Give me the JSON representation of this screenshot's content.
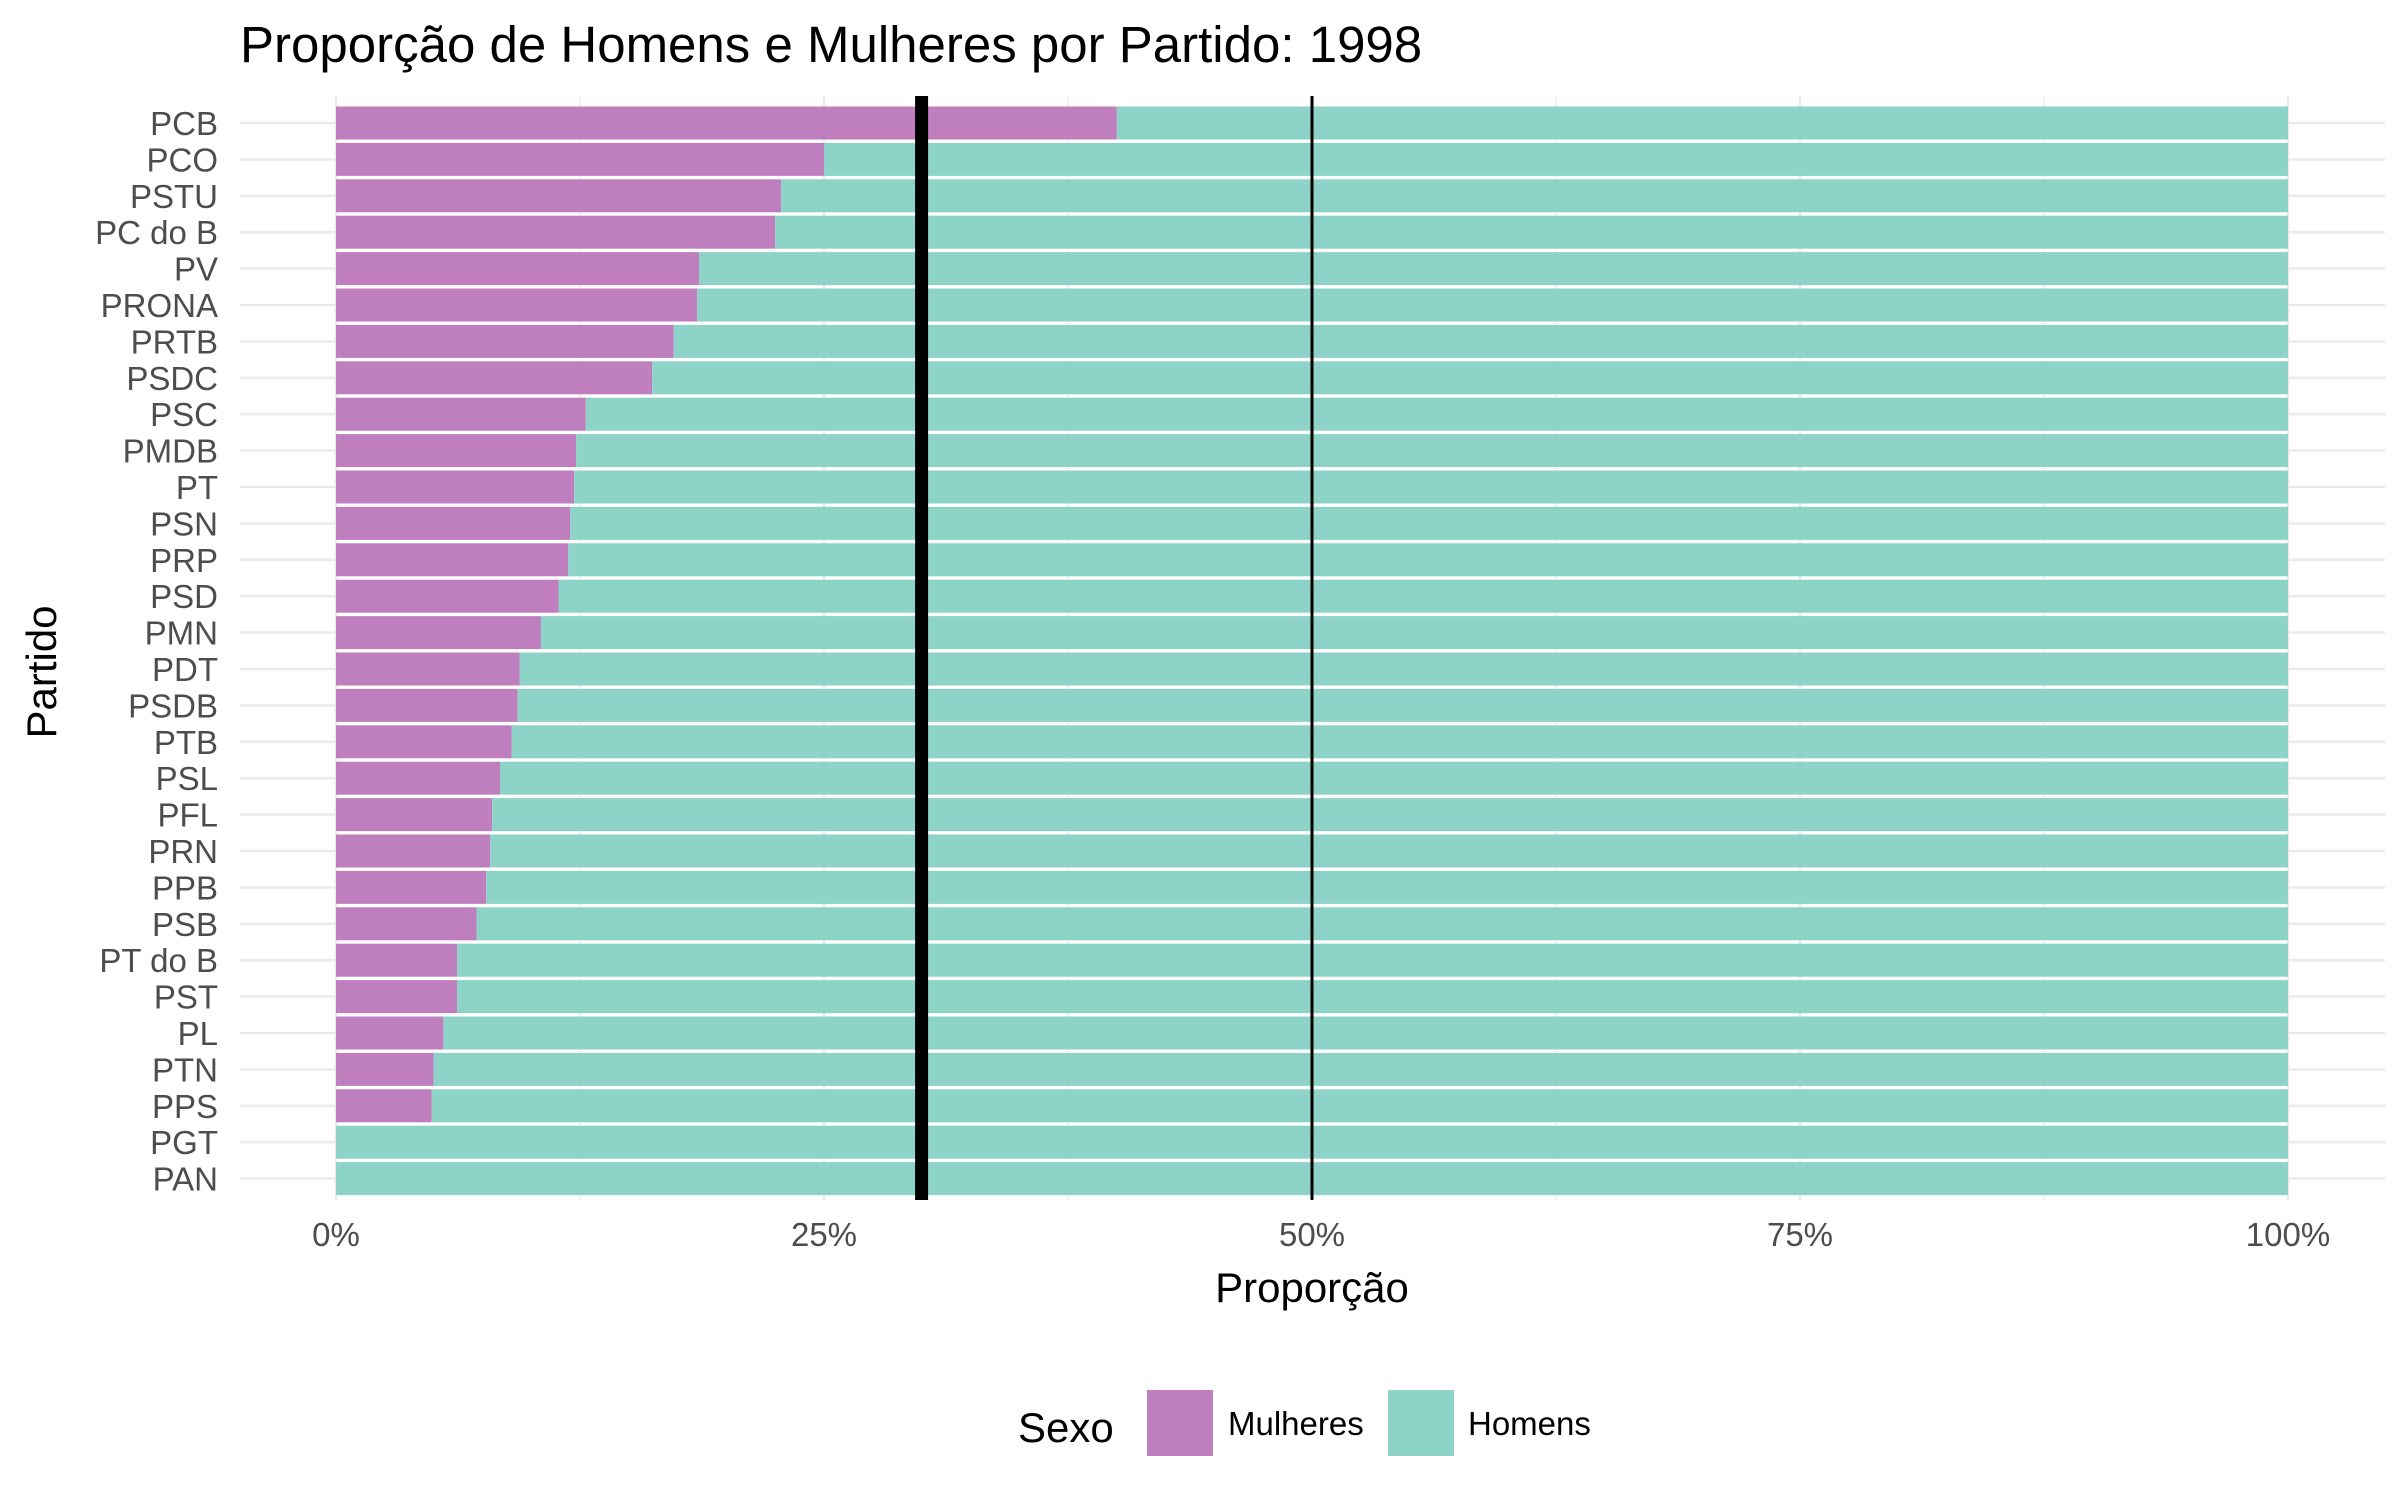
{
  "chart_data": {
    "type": "bar",
    "orientation": "horizontal",
    "stacked": true,
    "title": "Proporção de Homens e Mulheres por Partido: 1998",
    "xlabel": "Proporção",
    "ylabel": "Partido",
    "xlim": [
      0,
      1
    ],
    "x_ticks": [
      0,
      0.25,
      0.5,
      0.75,
      1
    ],
    "x_tick_labels": [
      "0%",
      "25%",
      "50%",
      "75%",
      "100%"
    ],
    "categories": [
      "PCB",
      "PCO",
      "PSTU",
      "PC do B",
      "PV",
      "PRONA",
      "PRTB",
      "PSDC",
      "PSC",
      "PMDB",
      "PT",
      "PSN",
      "PRP",
      "PSD",
      "PMN",
      "PDT",
      "PSDB",
      "PTB",
      "PSL",
      "PFL",
      "PRN",
      "PPB",
      "PSB",
      "PT do B",
      "PST",
      "PL",
      "PTN",
      "PPS",
      "PGT",
      "PAN"
    ],
    "series": [
      {
        "name": "Mulheres",
        "color": "#bf7fbf",
        "values": [
          0.4,
          0.25,
          0.228,
          0.225,
          0.186,
          0.185,
          0.173,
          0.162,
          0.128,
          0.123,
          0.122,
          0.12,
          0.119,
          0.114,
          0.105,
          0.094,
          0.093,
          0.09,
          0.084,
          0.08,
          0.079,
          0.077,
          0.072,
          0.062,
          0.062,
          0.055,
          0.05,
          0.049,
          0,
          0
        ]
      },
      {
        "name": "Homens",
        "color": "#8dd3c7",
        "values": [
          0.6,
          0.75,
          0.772,
          0.775,
          0.814,
          0.815,
          0.827,
          0.838,
          0.872,
          0.877,
          0.878,
          0.88,
          0.881,
          0.886,
          0.895,
          0.906,
          0.907,
          0.91,
          0.916,
          0.92,
          0.921,
          0.923,
          0.928,
          0.938,
          0.938,
          0.945,
          0.95,
          0.951,
          1,
          1
        ]
      }
    ],
    "reference_lines": [
      {
        "x": 0.3,
        "style": "thick"
      },
      {
        "x": 0.5,
        "style": "thin"
      }
    ],
    "legend": {
      "title": "Sexo",
      "position": "bottom"
    },
    "grid": true
  }
}
